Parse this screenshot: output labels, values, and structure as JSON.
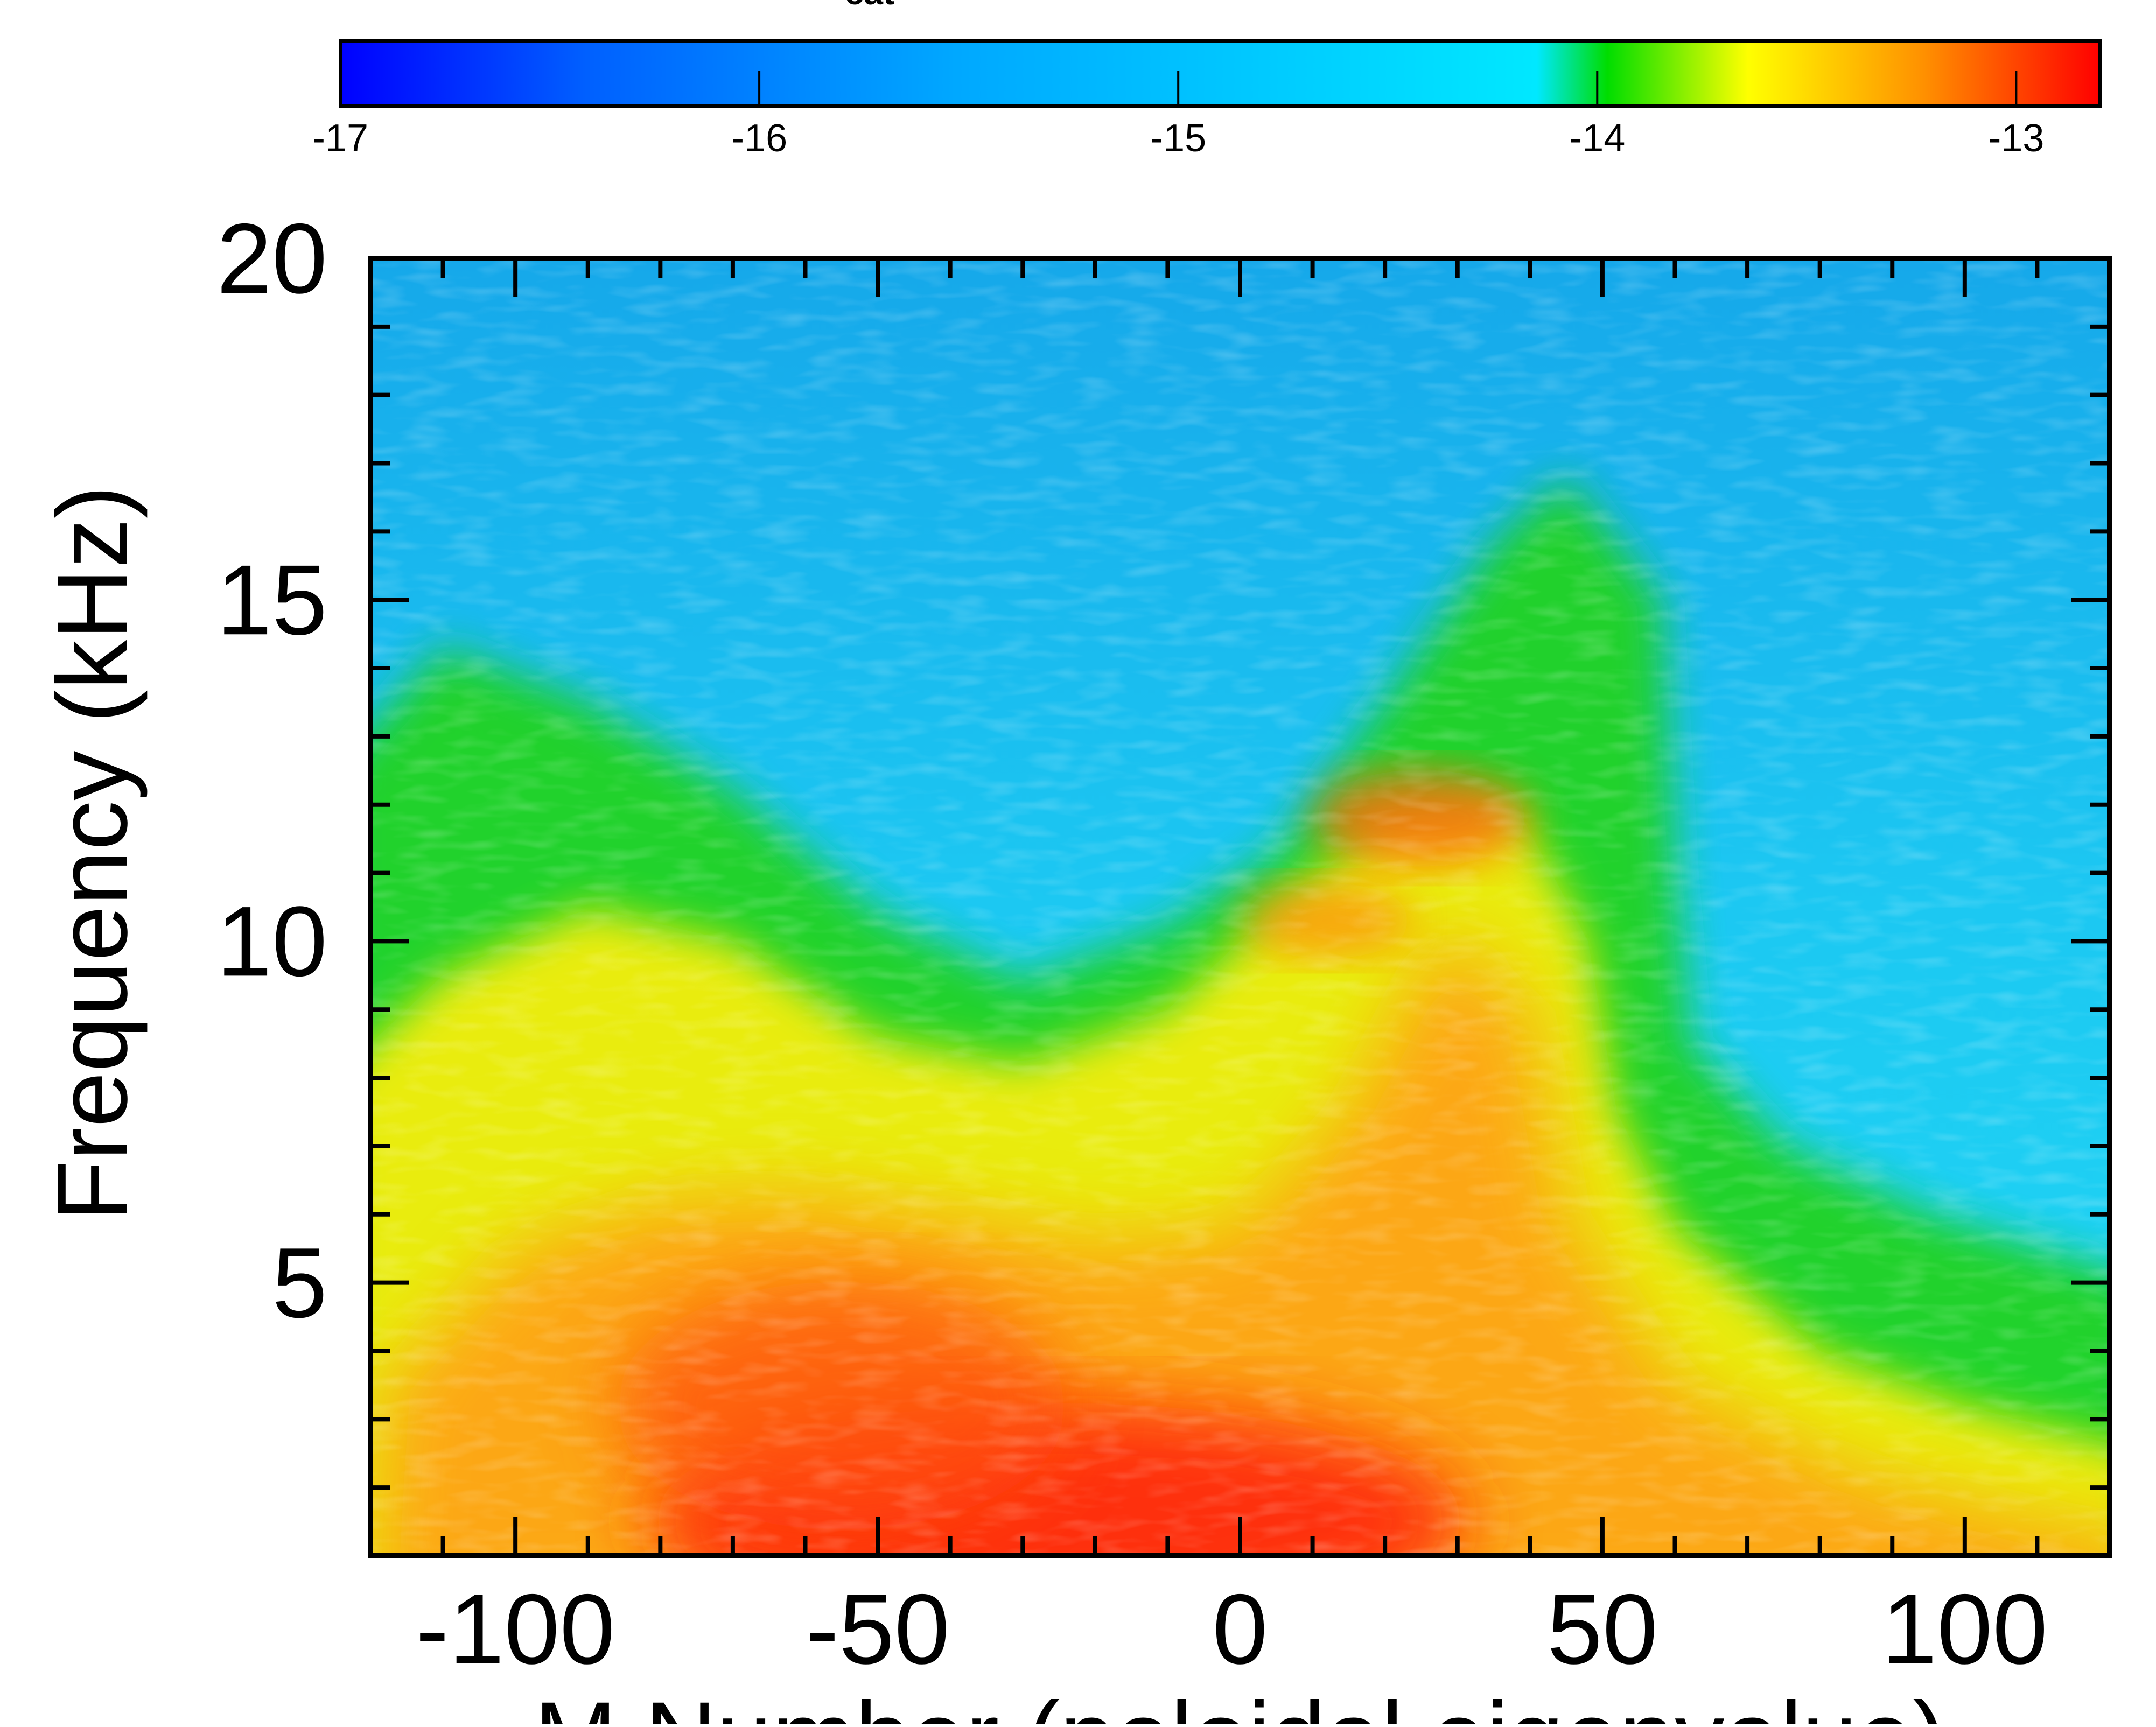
{
  "chart_data": {
    "type": "heatmap",
    "title": "",
    "xlabel": "M Number (poloidal eigenvalue)",
    "ylabel": "Frequency (kHz)",
    "xlim": [
      -120,
      120
    ],
    "ylim": [
      1,
      20
    ],
    "x_ticks": [
      -100,
      -50,
      0,
      50,
      100
    ],
    "y_ticks": [
      5,
      10,
      15,
      20
    ],
    "colorbar": {
      "title": "cat",
      "range": [
        -17,
        -12.8
      ],
      "ticks": [
        -17,
        -16,
        -15,
        -14,
        -13
      ],
      "colormap": [
        "#0000ff",
        "#0060ff",
        "#00a8ff",
        "#00e8ff",
        "#00dd00",
        "#ffff00",
        "#ff9000",
        "#ff0000"
      ]
    },
    "features": [
      {
        "name": "",
        "description": "broad low-frequency band",
        "x": -20,
        "y": 2,
        "value": -12.9
      },
      {
        "name": "",
        "description": "ridge peak",
        "x": 30,
        "y": 12,
        "value": -13.3
      },
      {
        "name": "",
        "description": "background",
        "x": 0,
        "y": 18,
        "value": -15.3
      }
    ]
  }
}
